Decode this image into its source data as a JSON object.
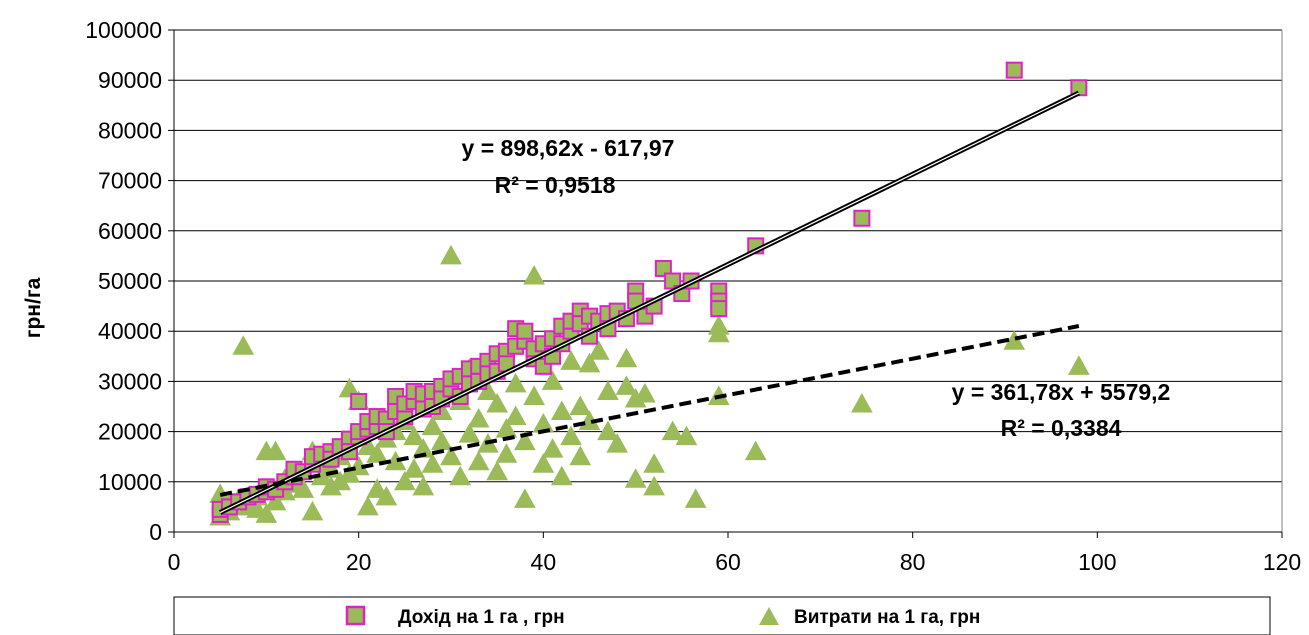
{
  "chart_data": {
    "type": "scatter",
    "title": "",
    "xlabel": "",
    "ylabel": "грн/га",
    "xlim": [
      0,
      120
    ],
    "ylim": [
      0,
      100000
    ],
    "x_ticks": [
      "0",
      "20",
      "40",
      "60",
      "80",
      "100",
      "120"
    ],
    "y_ticks": [
      "0",
      "10000",
      "20000",
      "30000",
      "40000",
      "50000",
      "60000",
      "70000",
      "80000",
      "90000",
      "100000"
    ],
    "grid": "horizontal",
    "legend_position": "bottom",
    "series": [
      {
        "name": "Дохід на 1 га , грн",
        "marker": "square",
        "fill": "#9bbb59",
        "stroke": "#e020c8",
        "points": [
          [
            5,
            3500
          ],
          [
            5,
            4500
          ],
          [
            6,
            5000
          ],
          [
            7,
            6000
          ],
          [
            8,
            7000
          ],
          [
            9,
            7500
          ],
          [
            10,
            8000
          ],
          [
            10,
            9000
          ],
          [
            11,
            8500
          ],
          [
            12,
            10000
          ],
          [
            13,
            11000
          ],
          [
            13,
            12500
          ],
          [
            14,
            12000
          ],
          [
            15,
            13500
          ],
          [
            15,
            15000
          ],
          [
            16,
            15500
          ],
          [
            17,
            16000
          ],
          [
            17,
            14500
          ],
          [
            18,
            17000
          ],
          [
            19,
            18500
          ],
          [
            19,
            16000
          ],
          [
            20,
            19000
          ],
          [
            20,
            20000
          ],
          [
            20,
            26000
          ],
          [
            21,
            20500
          ],
          [
            21,
            22000
          ],
          [
            22,
            21000
          ],
          [
            22,
            23000
          ],
          [
            23,
            22500
          ],
          [
            23,
            20000
          ],
          [
            24,
            24000
          ],
          [
            24,
            27000
          ],
          [
            25,
            23000
          ],
          [
            25,
            25500
          ],
          [
            26,
            26000
          ],
          [
            26,
            28000
          ],
          [
            27,
            24500
          ],
          [
            27,
            27500
          ],
          [
            28,
            28000
          ],
          [
            28,
            25000
          ],
          [
            29,
            29000
          ],
          [
            29,
            26500
          ],
          [
            30,
            28500
          ],
          [
            30,
            30500
          ],
          [
            31,
            31000
          ],
          [
            31,
            27000
          ],
          [
            32,
            32500
          ],
          [
            32,
            29500
          ],
          [
            33,
            33000
          ],
          [
            33,
            30000
          ],
          [
            34,
            34000
          ],
          [
            34,
            31500
          ],
          [
            35,
            35500
          ],
          [
            35,
            32000
          ],
          [
            36,
            36000
          ],
          [
            36,
            33500
          ],
          [
            37,
            40500
          ],
          [
            37,
            37000
          ],
          [
            38,
            38000
          ],
          [
            38,
            40000
          ],
          [
            39,
            34500
          ],
          [
            39,
            36500
          ],
          [
            40,
            37500
          ],
          [
            40,
            33000
          ],
          [
            41,
            38500
          ],
          [
            41,
            35000
          ],
          [
            42,
            41000
          ],
          [
            42,
            37500
          ],
          [
            43,
            40000
          ],
          [
            43,
            42000
          ],
          [
            44,
            44000
          ],
          [
            44,
            41500
          ],
          [
            45,
            39000
          ],
          [
            45,
            43000
          ],
          [
            46,
            42000
          ],
          [
            47,
            40500
          ],
          [
            47,
            43500
          ],
          [
            48,
            44000
          ],
          [
            49,
            42500
          ],
          [
            50,
            48000
          ],
          [
            50,
            46000
          ],
          [
            51,
            43000
          ],
          [
            52,
            45000
          ],
          [
            53,
            52500
          ],
          [
            54,
            50000
          ],
          [
            55,
            47500
          ],
          [
            56,
            50000
          ],
          [
            59,
            48000
          ],
          [
            59,
            46000
          ],
          [
            59,
            44500
          ],
          [
            63,
            57000
          ],
          [
            74.5,
            62500
          ],
          [
            91,
            92000
          ],
          [
            98,
            88500
          ]
        ]
      },
      {
        "name": "Витрати на 1 га, грн",
        "marker": "triangle",
        "fill": "#9bbb59",
        "stroke": "#9bbb59",
        "points": [
          [
            5,
            3000
          ],
          [
            5,
            7500
          ],
          [
            6,
            4000
          ],
          [
            6,
            5500
          ],
          [
            7,
            6500
          ],
          [
            7.5,
            37000
          ],
          [
            8,
            5000
          ],
          [
            9,
            7000
          ],
          [
            9,
            4500
          ],
          [
            10,
            3500
          ],
          [
            10,
            16000
          ],
          [
            11,
            16000
          ],
          [
            11,
            6000
          ],
          [
            12,
            8000
          ],
          [
            12,
            10500
          ],
          [
            13,
            9500
          ],
          [
            13,
            12000
          ],
          [
            14,
            8500
          ],
          [
            15,
            16000
          ],
          [
            15,
            4000
          ],
          [
            16,
            11000
          ],
          [
            16,
            14000
          ],
          [
            17,
            9000
          ],
          [
            17,
            12500
          ],
          [
            18,
            10000
          ],
          [
            18,
            15000
          ],
          [
            19,
            11500
          ],
          [
            19,
            28500
          ],
          [
            20,
            26000
          ],
          [
            20,
            13000
          ],
          [
            21,
            5000
          ],
          [
            21,
            17000
          ],
          [
            22,
            8500
          ],
          [
            22,
            15500
          ],
          [
            23,
            7000
          ],
          [
            23,
            18500
          ],
          [
            24,
            14000
          ],
          [
            24,
            20000
          ],
          [
            25,
            10000
          ],
          [
            25,
            22000
          ],
          [
            26,
            12500
          ],
          [
            26,
            19000
          ],
          [
            27,
            16500
          ],
          [
            27,
            9000
          ],
          [
            28,
            21000
          ],
          [
            28,
            13500
          ],
          [
            29,
            18000
          ],
          [
            29,
            24000
          ],
          [
            30,
            15000
          ],
          [
            30,
            55000
          ],
          [
            31,
            26000
          ],
          [
            31,
            11000
          ],
          [
            32,
            32500
          ],
          [
            32,
            19500
          ],
          [
            33,
            14000
          ],
          [
            33,
            22500
          ],
          [
            34,
            17500
          ],
          [
            34,
            28000
          ],
          [
            35,
            12000
          ],
          [
            35,
            25500
          ],
          [
            36,
            20500
          ],
          [
            36,
            15500
          ],
          [
            37,
            29500
          ],
          [
            37,
            23000
          ],
          [
            38,
            6500
          ],
          [
            38,
            18000
          ],
          [
            39,
            51000
          ],
          [
            39,
            27000
          ],
          [
            40,
            13500
          ],
          [
            40,
            21500
          ],
          [
            41,
            30000
          ],
          [
            41,
            16500
          ],
          [
            42,
            24000
          ],
          [
            42,
            11000
          ],
          [
            43,
            34000
          ],
          [
            43,
            19000
          ],
          [
            44,
            25000
          ],
          [
            44,
            15000
          ],
          [
            45,
            33500
          ],
          [
            45,
            22000
          ],
          [
            46,
            36000
          ],
          [
            47,
            20000
          ],
          [
            47,
            28000
          ],
          [
            48,
            17500
          ],
          [
            49,
            29000
          ],
          [
            49,
            34500
          ],
          [
            50,
            10500
          ],
          [
            50,
            26500
          ],
          [
            51,
            27500
          ],
          [
            52,
            9000
          ],
          [
            52,
            13500
          ],
          [
            54,
            20000
          ],
          [
            55.5,
            19000
          ],
          [
            56.5,
            6500
          ],
          [
            59,
            41000
          ],
          [
            59,
            39500
          ],
          [
            59,
            27000
          ],
          [
            63,
            16000
          ],
          [
            74.5,
            25500
          ],
          [
            91,
            38000
          ],
          [
            98,
            33000
          ]
        ]
      }
    ],
    "trendlines": [
      {
        "series": 0,
        "style": "solid",
        "slope": 898.62,
        "intercept": -617.97,
        "x_range": [
          5,
          98
        ],
        "equation": "y = 898,62x - 617,97",
        "r2": "R² = 0,9518"
      },
      {
        "series": 1,
        "style": "dashed",
        "slope": 361.78,
        "intercept": 5579.2,
        "x_range": [
          5,
          98
        ],
        "equation": "y = 361,78x + 5579,2",
        "r2": "R² = 0,3384"
      }
    ]
  },
  "legend": {
    "income_label": "Дохід на 1 га , грн",
    "costs_label": "Витрати на 1 га, грн"
  }
}
